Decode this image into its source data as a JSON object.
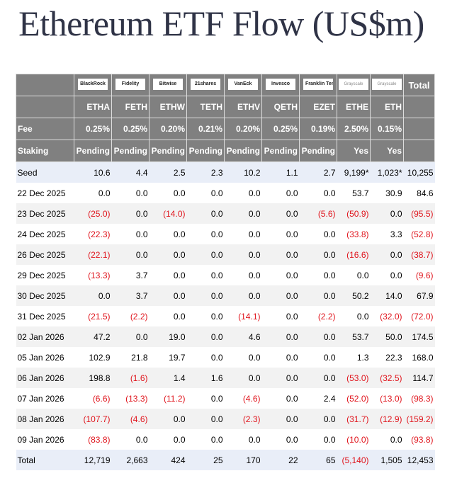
{
  "title": "Ethereum ETF Flow (US$m)",
  "issuers": [
    "BlackRock",
    "Fidelity",
    "Bitwise",
    "21shares",
    "VanEck",
    "Invesco",
    "Franklin Templeton",
    "Grayscale",
    "Grayscale"
  ],
  "total_label": "Total",
  "tickers": [
    "ETHA",
    "FETH",
    "ETHW",
    "TETH",
    "ETHV",
    "QETH",
    "EZET",
    "ETHE",
    "ETH"
  ],
  "fee_label": "Fee",
  "fees": [
    "0.25%",
    "0.25%",
    "0.20%",
    "0.21%",
    "0.20%",
    "0.25%",
    "0.19%",
    "2.50%",
    "0.15%"
  ],
  "staking_label": "Staking",
  "staking": [
    "Pending",
    "Pending",
    "Pending",
    "Pending",
    "Pending",
    "Pending",
    "Pending",
    "Yes",
    "Yes"
  ],
  "rows": [
    {
      "label": "Seed",
      "values": [
        "10.6",
        "4.4",
        "2.5",
        "2.3",
        "10.2",
        "1.1",
        "2.7",
        "9,199*",
        "1,023*",
        "10,255"
      ]
    },
    {
      "label": "22 Dec 2025",
      "values": [
        "0.0",
        "0.0",
        "0.0",
        "0.0",
        "0.0",
        "0.0",
        "0.0",
        "53.7",
        "30.9",
        "84.6"
      ]
    },
    {
      "label": "23 Dec 2025",
      "values": [
        "(25.0)",
        "0.0",
        "(14.0)",
        "0.0",
        "0.0",
        "0.0",
        "(5.6)",
        "(50.9)",
        "0.0",
        "(95.5)"
      ]
    },
    {
      "label": "24 Dec 2025",
      "values": [
        "(22.3)",
        "0.0",
        "0.0",
        "0.0",
        "0.0",
        "0.0",
        "0.0",
        "(33.8)",
        "3.3",
        "(52.8)"
      ]
    },
    {
      "label": "26 Dec 2025",
      "values": [
        "(22.1)",
        "0.0",
        "0.0",
        "0.0",
        "0.0",
        "0.0",
        "0.0",
        "(16.6)",
        "0.0",
        "(38.7)"
      ]
    },
    {
      "label": "29 Dec 2025",
      "values": [
        "(13.3)",
        "3.7",
        "0.0",
        "0.0",
        "0.0",
        "0.0",
        "0.0",
        "0.0",
        "0.0",
        "(9.6)"
      ]
    },
    {
      "label": "30 Dec 2025",
      "values": [
        "0.0",
        "3.7",
        "0.0",
        "0.0",
        "0.0",
        "0.0",
        "0.0",
        "50.2",
        "14.0",
        "67.9"
      ]
    },
    {
      "label": "31 Dec 2025",
      "values": [
        "(21.5)",
        "(2.2)",
        "0.0",
        "0.0",
        "(14.1)",
        "0.0",
        "(2.2)",
        "0.0",
        "(32.0)",
        "(72.0)"
      ]
    },
    {
      "label": "02 Jan 2026",
      "values": [
        "47.2",
        "0.0",
        "19.0",
        "0.0",
        "4.6",
        "0.0",
        "0.0",
        "53.7",
        "50.0",
        "174.5"
      ]
    },
    {
      "label": "05 Jan 2026",
      "values": [
        "102.9",
        "21.8",
        "19.7",
        "0.0",
        "0.0",
        "0.0",
        "0.0",
        "1.3",
        "22.3",
        "168.0"
      ]
    },
    {
      "label": "06 Jan 2026",
      "values": [
        "198.8",
        "(1.6)",
        "1.4",
        "1.6",
        "0.0",
        "0.0",
        "0.0",
        "(53.0)",
        "(32.5)",
        "114.7"
      ]
    },
    {
      "label": "07 Jan 2026",
      "values": [
        "(6.6)",
        "(13.3)",
        "(11.2)",
        "0.0",
        "(4.6)",
        "0.0",
        "2.4",
        "(52.0)",
        "(13.0)",
        "(98.3)"
      ]
    },
    {
      "label": "08 Jan 2026",
      "values": [
        "(107.7)",
        "(4.6)",
        "0.0",
        "0.0",
        "(2.3)",
        "0.0",
        "0.0",
        "(31.7)",
        "(12.9)",
        "(159.2)"
      ]
    },
    {
      "label": "09 Jan 2026",
      "values": [
        "(83.8)",
        "0.0",
        "0.0",
        "0.0",
        "0.0",
        "0.0",
        "0.0",
        "(10.0)",
        "0.0",
        "(93.8)"
      ]
    },
    {
      "label": "Total",
      "values": [
        "12,719",
        "2,663",
        "424",
        "25",
        "170",
        "22",
        "65",
        "(5,140)",
        "1,505",
        "12,453"
      ]
    }
  ],
  "colors": {
    "header_bg": "#808080",
    "negative": "#e0141c",
    "title": "#2f3346",
    "row_blue": "#e9eef8",
    "row_gray": "#f2f2f2"
  }
}
